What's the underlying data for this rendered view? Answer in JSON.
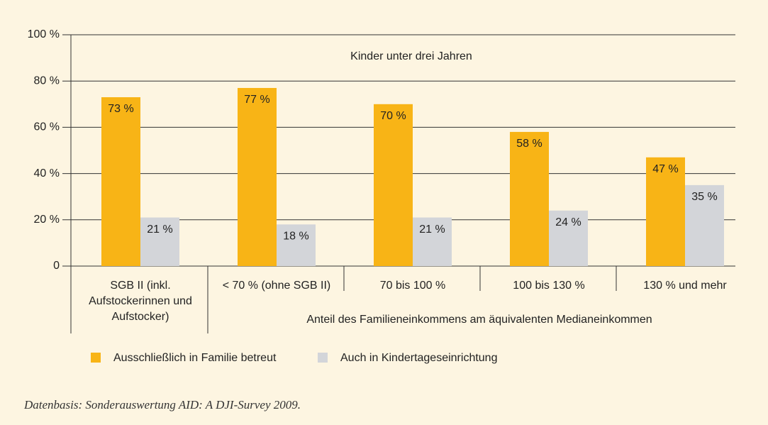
{
  "chart_data": {
    "type": "bar",
    "subtitle": "Kinder unter drei Jahren",
    "categories": [
      "SGB II (inkl. Aufstockerinnen und Aufstocker)",
      "< 70 % (ohne SGB II)",
      "70 bis 100 %",
      "100 bis 130 %",
      "130 % und mehr"
    ],
    "x_label": "Anteil des Familieneinkommens am äquivalenten Medianeinkommen",
    "series": [
      {
        "name": "Ausschließlich in Familie betreut",
        "color": "#f8b416",
        "values": [
          73,
          77,
          70,
          58,
          47
        ],
        "value_labels": [
          "73 %",
          "77 %",
          "70 %",
          "58 %",
          "47 %"
        ]
      },
      {
        "name": "Auch in  Kindertageseinrichtung",
        "color": "#d3d5d9",
        "values": [
          21,
          18,
          21,
          24,
          35
        ],
        "value_labels": [
          "21 %",
          "18 %",
          "21 %",
          "24 %",
          "35 %"
        ]
      }
    ],
    "ylim": [
      0,
      100
    ],
    "yticks": [
      0,
      {
        "value": 20,
        "label": "20 %"
      },
      {
        "value": 40,
        "label": "40 %"
      },
      {
        "value": 60,
        "label": "60 %"
      },
      {
        "value": 80,
        "label": "80 %"
      },
      {
        "value": 100,
        "label": "100 %"
      }
    ],
    "grid": true,
    "note": "Datenbasis: Sonderauswertung AID: A DJI-Survey 2009."
  }
}
